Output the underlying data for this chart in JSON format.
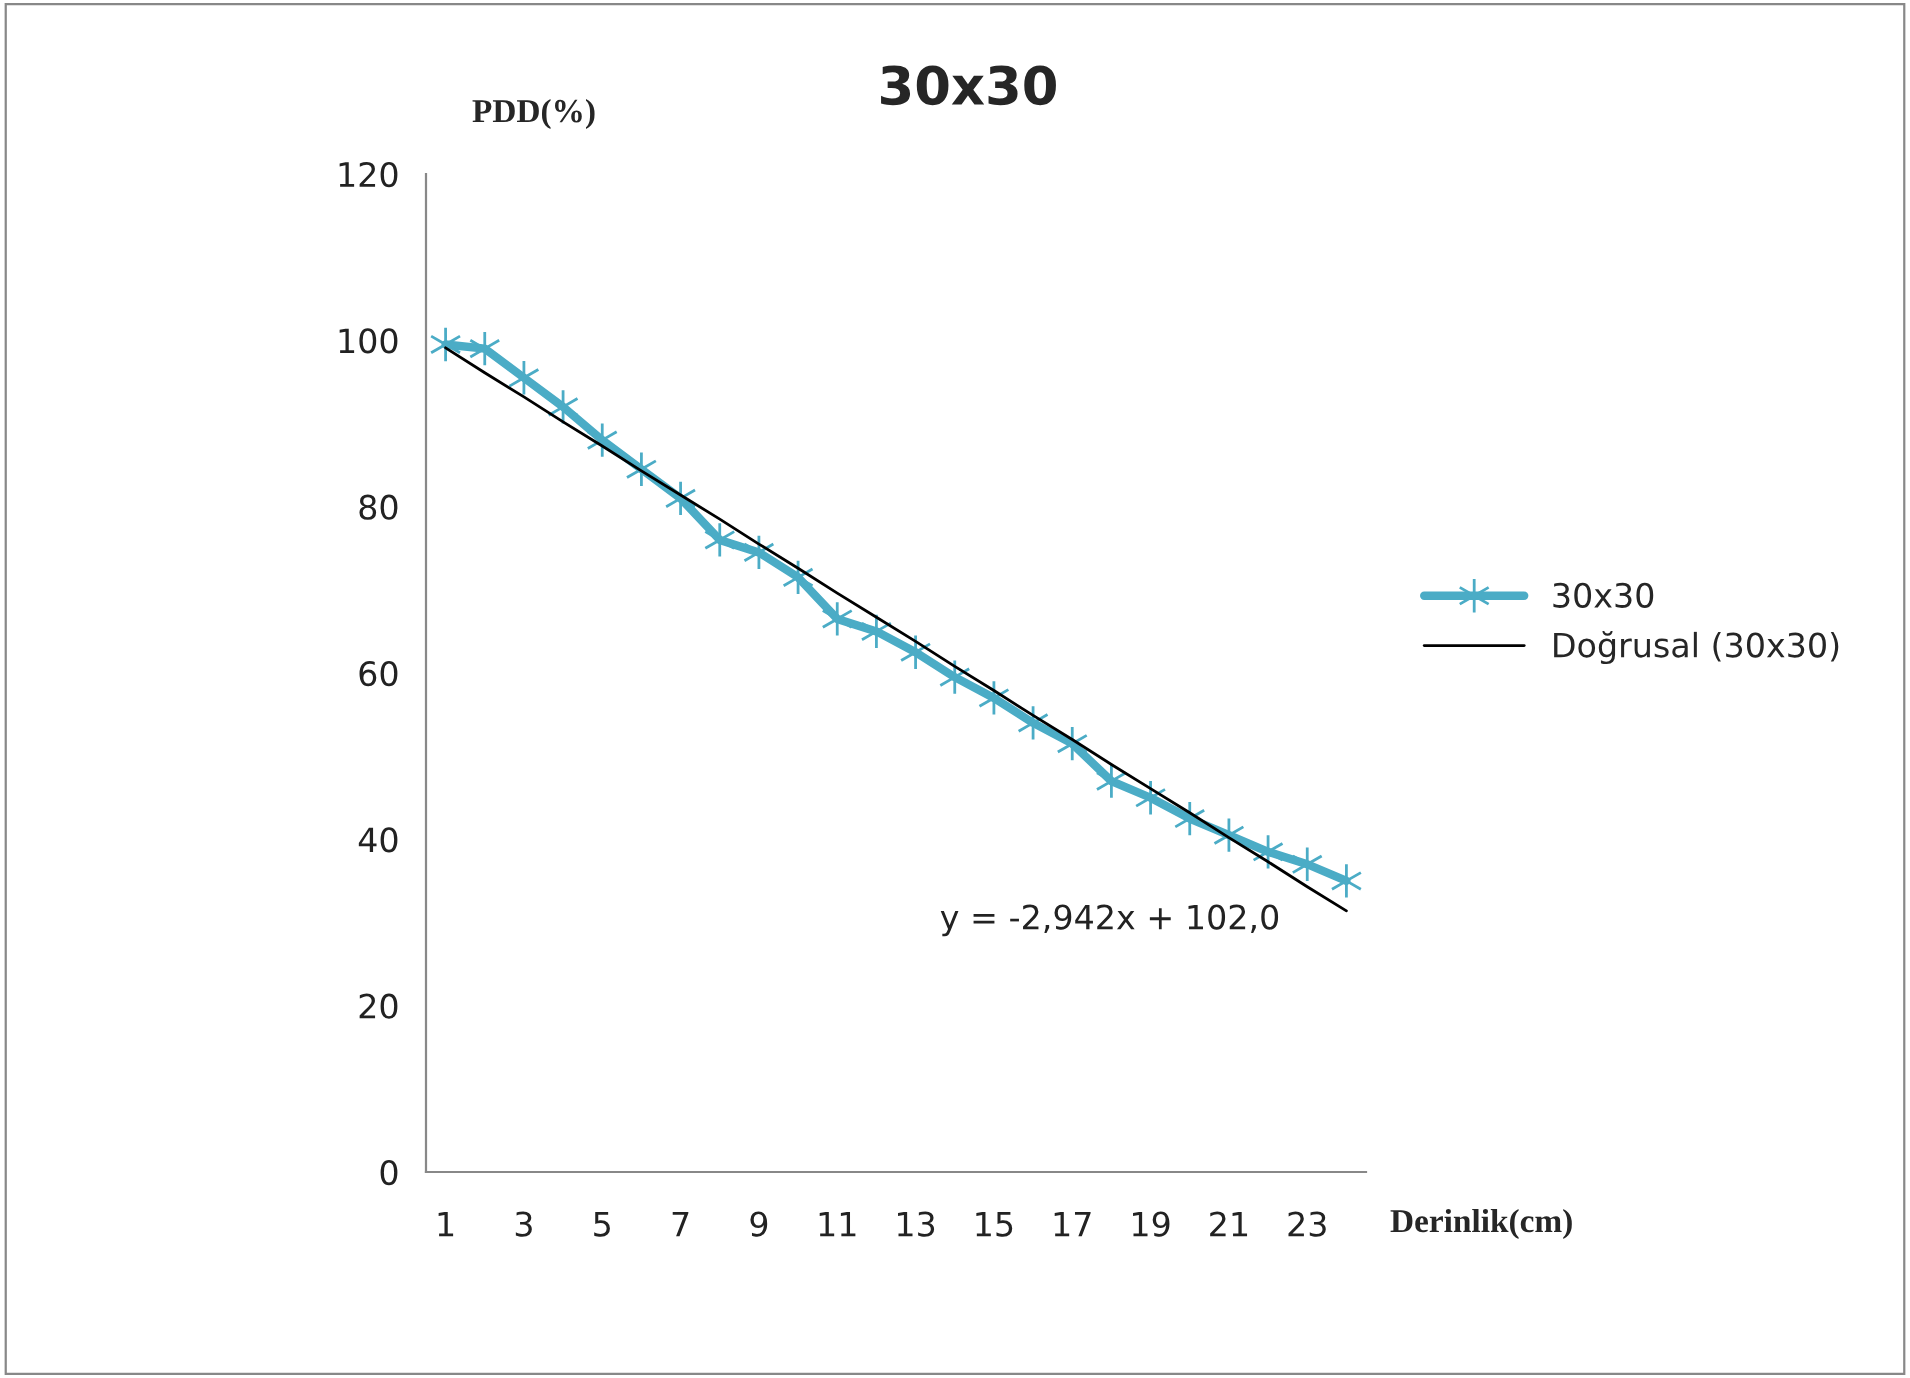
{
  "chart_data": {
    "type": "line",
    "title": "30x30",
    "xlabel": "Derinlik(cm)",
    "ylabel": "PDD(%)",
    "categories": [
      "1",
      null,
      "3",
      null,
      "5",
      null,
      "7",
      null,
      "9",
      null,
      "11",
      null,
      "13",
      null,
      "15",
      null,
      "17",
      null,
      "19",
      null,
      "21",
      null,
      "23",
      null
    ],
    "series": [
      {
        "name": "30x30",
        "color": "#4bacc6",
        "marker": "cross",
        "values": [
          99.5,
          99,
          95.5,
          92,
          88,
          84.5,
          81,
          76,
          74.5,
          71.5,
          66.5,
          65,
          62.5,
          59.5,
          57,
          54,
          51.5,
          47,
          45,
          42.5,
          40.5,
          38.5,
          37,
          35
        ]
      },
      {
        "name": "Doğrusal (30x30)",
        "color": "#000000",
        "marker": "none",
        "values": [
          99.1,
          96.1,
          93.2,
          90.2,
          87.3,
          84.3,
          81.4,
          78.5,
          75.5,
          72.6,
          69.6,
          66.7,
          63.8,
          60.8,
          57.9,
          54.9,
          52.0,
          49.0,
          46.1,
          43.2,
          40.2,
          37.3,
          34.3,
          31.4
        ]
      }
    ],
    "ylim": [
      0,
      120
    ],
    "yticks": [
      0,
      20,
      40,
      60,
      80,
      100,
      120
    ],
    "grid": false,
    "legend": "right",
    "line_style": "solid",
    "annotations": [
      "y = -2,942x + 102,0"
    ]
  }
}
